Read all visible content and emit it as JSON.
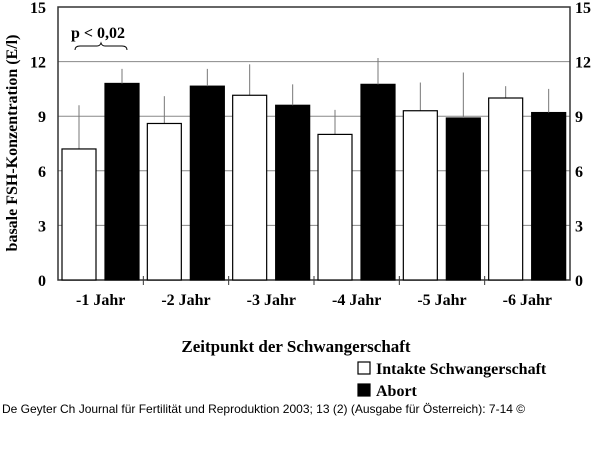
{
  "chart_data": {
    "type": "bar",
    "title": "",
    "xlabel": "Zeitpunkt der Schwangerschaft",
    "ylabel": "basale FSH-Konzentration (E/l)",
    "ylim": [
      0,
      15
    ],
    "yticks": [
      "0",
      "3",
      "6",
      "9",
      "12",
      "15"
    ],
    "grid": true,
    "categories": [
      "-1 Jahr",
      "-2 Jahr",
      "-3 Jahr",
      "-4 Jahr",
      "-5 Jahr",
      "-6 Jahr"
    ],
    "series": [
      {
        "name": "Intakte Schwangerschaft",
        "color": "#ffffff",
        "values": [
          7.2,
          8.6,
          10.15,
          8.0,
          9.3,
          10.0
        ],
        "error": [
          2.4,
          1.5,
          1.7,
          1.35,
          1.55,
          0.65
        ]
      },
      {
        "name": "Abort",
        "color": "#000000",
        "values": [
          10.8,
          10.65,
          9.6,
          10.75,
          8.9,
          9.2
        ],
        "error": [
          0.8,
          0.95,
          1.15,
          1.45,
          2.5,
          1.3
        ]
      }
    ],
    "annotation": "p < 0,02",
    "legend_position": "bottom-right"
  },
  "footer": "De Geyter Ch Journal für Fertilität und Reproduktion 2003; 13 (2) (Ausgabe für Österreich): 7-14 ©"
}
